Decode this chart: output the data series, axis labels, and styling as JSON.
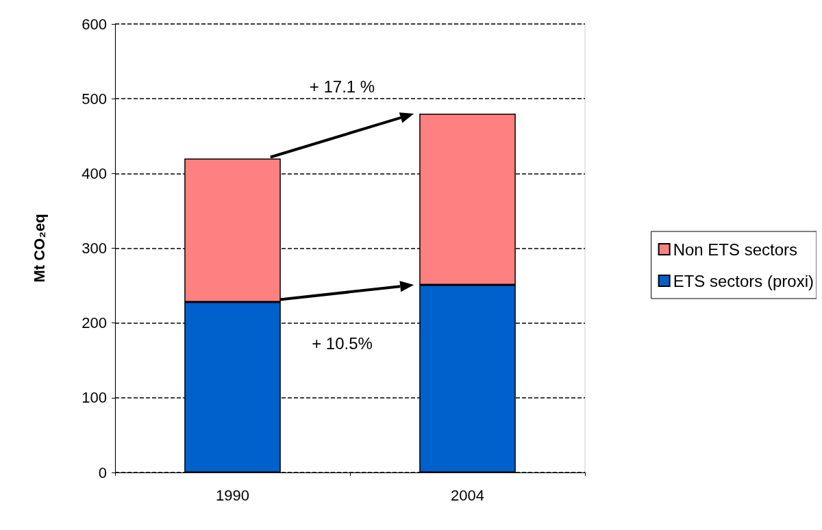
{
  "chart_data": {
    "type": "bar",
    "stacked": true,
    "ylabel": "Mt CO₂eq",
    "categories": [
      "1990",
      "2004"
    ],
    "series": [
      {
        "name": "ETS sectors (proxi)",
        "color": "#0060cc",
        "values": [
          228,
          251
        ]
      },
      {
        "name": "Non ETS sectors",
        "color": "#ff8080",
        "values": [
          192,
          229
        ]
      }
    ],
    "ylim": [
      0,
      600
    ],
    "yticks": [
      0,
      100,
      200,
      300,
      400,
      500,
      600
    ],
    "grid": "y",
    "legend": "right",
    "annotations": [
      "+ 17.1 %",
      "+ 10.5%"
    ]
  }
}
